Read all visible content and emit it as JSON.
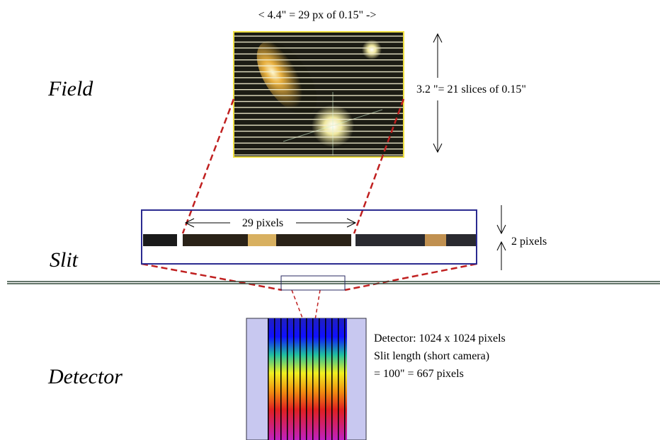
{
  "labels": {
    "field": "Field",
    "slit": "Slit",
    "detector": "Detector"
  },
  "field": {
    "width_label": "4.4\" = 29 px of 0.15\"",
    "height_label": "3.2 \"= 21 slices of 0.15\""
  },
  "slit": {
    "length_label": "29 pixels",
    "height_label": "2 pixels"
  },
  "detector": {
    "lines": [
      "Detector: 1024 x 1024 pixels",
      "Slit length (short camera)",
      "= 100\" = 667 pixels"
    ]
  }
}
